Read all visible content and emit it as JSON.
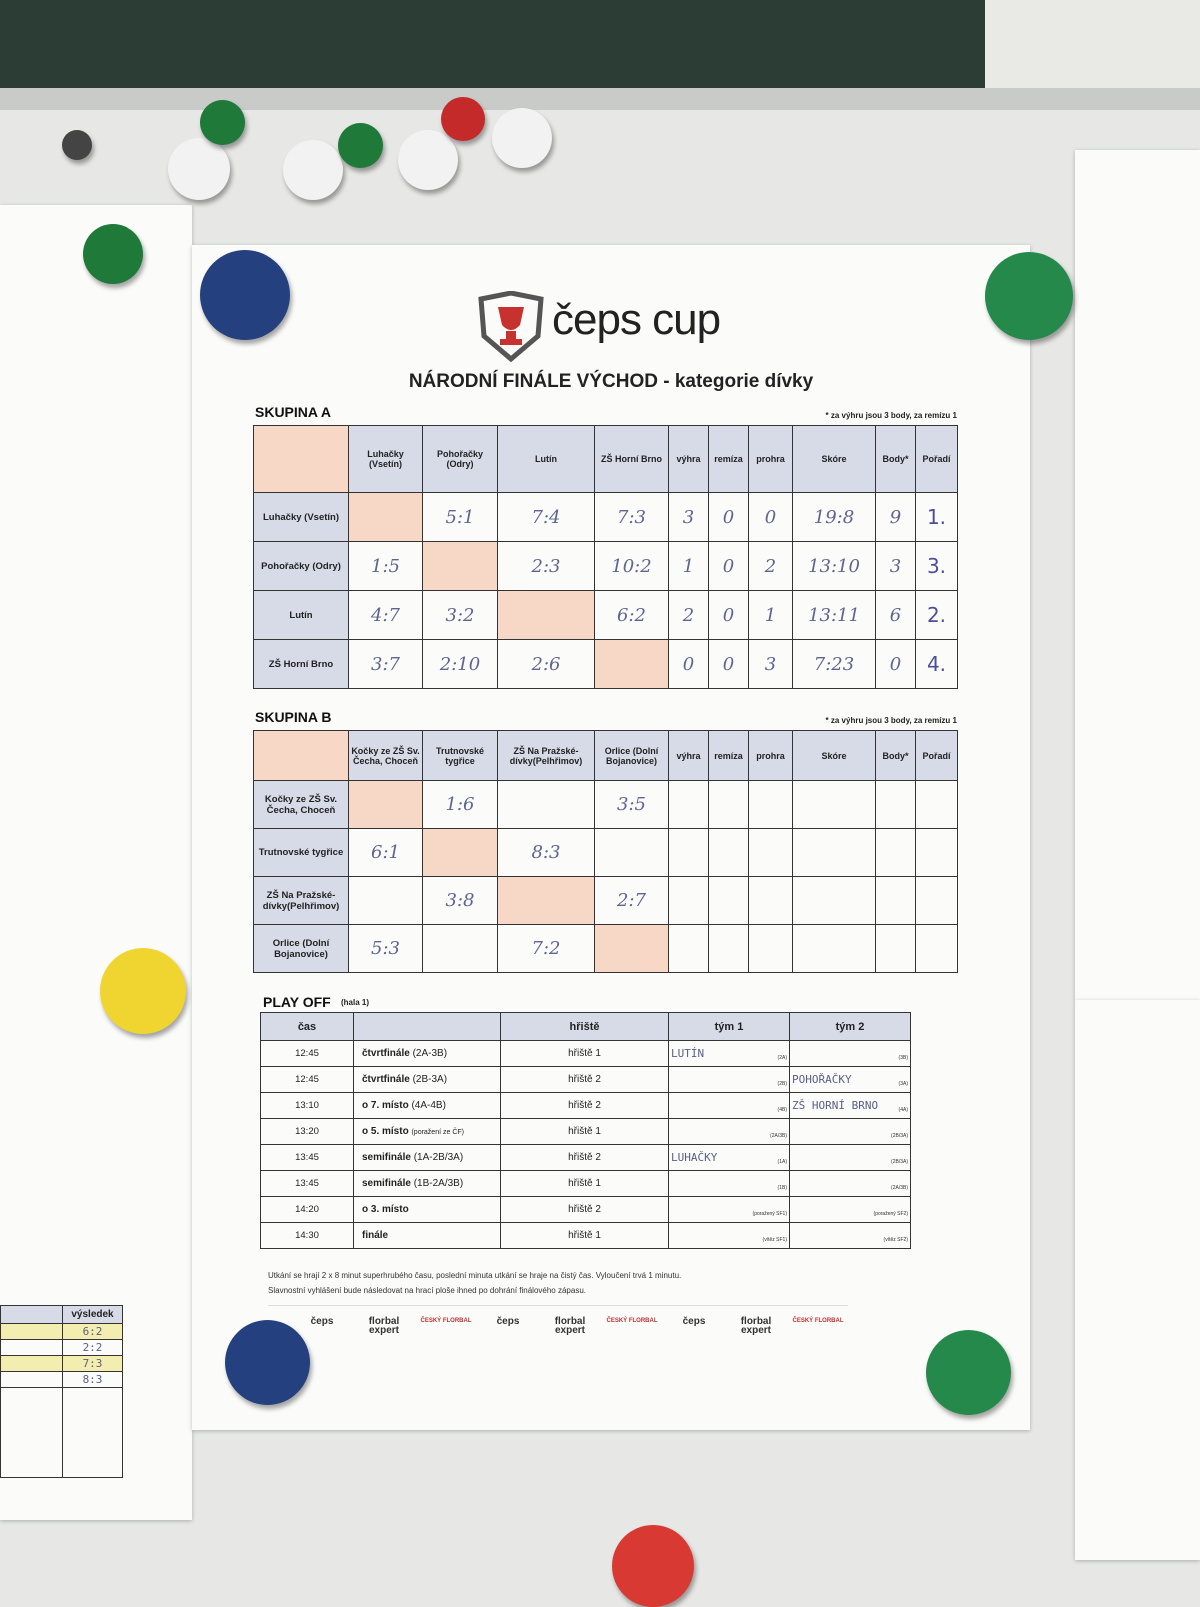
{
  "logo": "čeps cup",
  "title": "NÁRODNÍ FINÁLE VÝCHOD - kategorie dívky",
  "groups": [
    {
      "name": "SKUPINA A",
      "note": "* za výhru jsou 3 body, za remízu 1",
      "headers": [
        "Luhačky (Vsetín)",
        "Pohořačky (Odry)",
        "Lutín",
        "ZŠ Horní Brno",
        "výhra",
        "remíza",
        "prohra",
        "Skóre",
        "Body*",
        "Pořadí"
      ],
      "rows": [
        {
          "team": "Luhačky (Vsetín)",
          "cells": [
            null,
            "5:1",
            "7:4",
            "7:3",
            "3",
            "0",
            "0",
            "19:8",
            "9",
            "1."
          ]
        },
        {
          "team": "Pohořačky (Odry)",
          "cells": [
            "1:5",
            null,
            "2:3",
            "10:2",
            "1",
            "0",
            "2",
            "13:10",
            "3",
            "3."
          ]
        },
        {
          "team": "Lutín",
          "cells": [
            "4:7",
            "3:2",
            null,
            "6:2",
            "2",
            "0",
            "1",
            "13:11",
            "6",
            "2."
          ]
        },
        {
          "team": "ZŠ Horní Brno",
          "cells": [
            "3:7",
            "2:10",
            "2:6",
            null,
            "0",
            "0",
            "3",
            "7:23",
            "0",
            "4."
          ]
        }
      ]
    },
    {
      "name": "SKUPINA B",
      "note": "* za výhru jsou 3 body, za remízu 1",
      "headers": [
        "Kočky ze ZŠ Sv. Čecha, Choceň",
        "Trutnovské tygřice",
        "ZŠ Na Pražské-dívky(Pelhřimov)",
        "Orlice (Dolní Bojanovice)",
        "výhra",
        "remíza",
        "prohra",
        "Skóre",
        "Body*",
        "Pořadí"
      ],
      "rows": [
        {
          "team": "Kočky ze ZŠ Sv. Čecha, Choceň",
          "cells": [
            null,
            "1:6",
            null,
            "3:5",
            null,
            null,
            null,
            null,
            null,
            null
          ]
        },
        {
          "team": "Trutnovské tygřice",
          "cells": [
            "6:1",
            null,
            "8:3",
            null,
            null,
            null,
            null,
            null,
            null,
            null
          ]
        },
        {
          "team": "ZŠ Na Pražské-dívky(Pelhřimov)",
          "cells": [
            null,
            "3:8",
            null,
            "2:7",
            null,
            null,
            null,
            null,
            null,
            null
          ]
        },
        {
          "team": "Orlice (Dolní Bojanovice)",
          "cells": [
            "5:3",
            null,
            "7:2",
            null,
            null,
            null,
            null,
            null,
            null,
            null
          ]
        }
      ]
    }
  ],
  "playoff": {
    "title": "PLAY OFF",
    "subtitle": "(hala 1)",
    "headers": [
      "čas",
      "hřiště",
      "tým 1",
      "tým 2"
    ],
    "rows": [
      {
        "time": "12:45",
        "stage": "čtvrtfinále",
        "stage_note": "(2A-3B)",
        "court": "hřiště 1",
        "team1": "LUTÍN",
        "seed1": "(2A)",
        "team2": null,
        "seed2": "(3B)"
      },
      {
        "time": "12:45",
        "stage": "čtvrtfinále",
        "stage_note": "(2B-3A)",
        "court": "hřiště 2",
        "team1": null,
        "seed1": "(2B)",
        "team2": "POHOŘAČKY",
        "seed2": "(3A)"
      },
      {
        "time": "13:10",
        "stage": "o 7. místo",
        "stage_note": "(4A-4B)",
        "court": "hřiště 2",
        "team1": null,
        "seed1": "(4B)",
        "team2": "ZŠ HORNÍ BRNO",
        "seed2": "(4A)"
      },
      {
        "time": "13:20",
        "stage": "o 5. místo",
        "stage_note": "(poražení ze ČF)",
        "court": "hřiště 1",
        "team1": null,
        "seed1": "(2A/3B)",
        "team2": null,
        "seed2": "(2B/3A)"
      },
      {
        "time": "13:45",
        "stage": "semifinále",
        "stage_note": "(1A-2B/3A)",
        "court": "hřiště 2",
        "team1": "LUHAČKY",
        "seed1": "(1A)",
        "team2": null,
        "seed2": "(2B/3A)"
      },
      {
        "time": "13:45",
        "stage": "semifinále",
        "stage_note": "(1B-2A/3B)",
        "court": "hřiště 1",
        "team1": null,
        "seed1": "(1B)",
        "team2": null,
        "seed2": "(2A/3B)"
      },
      {
        "time": "14:20",
        "stage": "o 3. místo",
        "stage_note": null,
        "court": "hřiště 2",
        "team1": null,
        "seed1": "(poražený SF1)",
        "team2": null,
        "seed2": "(poražený SF2)"
      },
      {
        "time": "14:30",
        "stage": "finále",
        "stage_note": null,
        "court": "hřiště 1",
        "team1": null,
        "seed1": "(vítěz SF1)",
        "team2": null,
        "seed2": "(vítěz SF2)"
      }
    ]
  },
  "notes": [
    "Utkání se hrají 2 x 8 minut superhrubého času, poslední minuta utkání se hraje na čistý čas. Vyloučení trvá 1 minutu.",
    "Slavnostní vyhlášení bude následovat na hrací ploše ihned po dohrání finálového zápasu."
  ],
  "sponsors": [
    "čeps",
    "florbal expert",
    "ČESKÝ FLORBAL"
  ],
  "side_sheet": {
    "header": "výsledek",
    "results": [
      "6:2",
      "2:2",
      "7:3",
      "8:3"
    ]
  }
}
